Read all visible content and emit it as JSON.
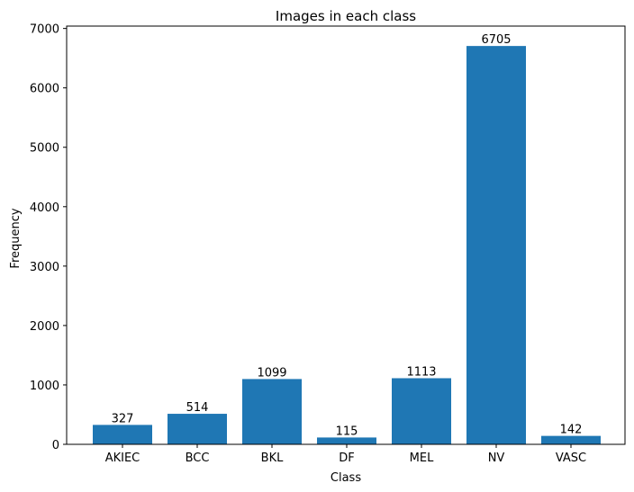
{
  "chart_data": {
    "type": "bar",
    "title": "Images in each class",
    "xlabel": "Class",
    "ylabel": "Frequency",
    "categories": [
      "AKIEC",
      "BCC",
      "BKL",
      "DF",
      "MEL",
      "NV",
      "VASC"
    ],
    "values": [
      327,
      514,
      1099,
      115,
      1113,
      6705,
      142
    ],
    "data_labels": [
      "327",
      "514",
      "1099",
      "115",
      "1113",
      "6705",
      "142"
    ],
    "yticks": [
      0,
      1000,
      2000,
      3000,
      4000,
      5000,
      6000,
      7000
    ],
    "ylim": [
      0,
      7040
    ],
    "grid": false,
    "legend": "none",
    "bar_color": "#1f77b4"
  }
}
